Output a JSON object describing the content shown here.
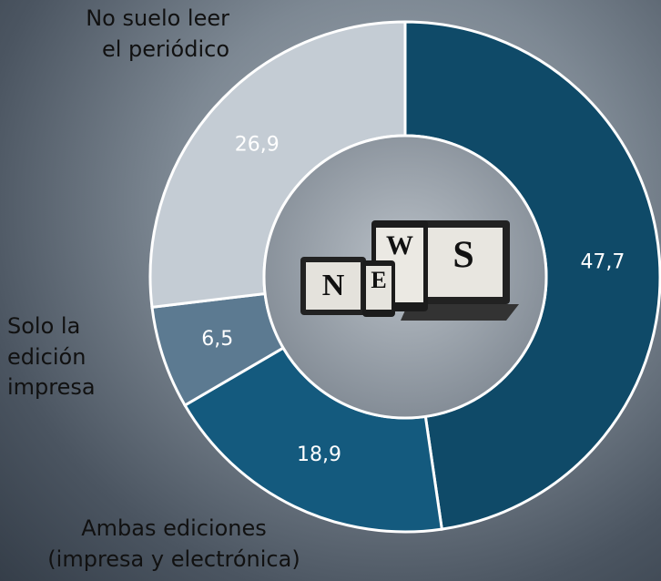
{
  "chart_data": {
    "type": "donut",
    "categories": [
      null,
      "Ambas ediciones (impresa y electrónica)",
      "Solo la edición impresa",
      "No suelo leer el periódico"
    ],
    "values": [
      47.7,
      18.9,
      6.5,
      26.9
    ],
    "value_labels": [
      "47,7",
      "18,9",
      "6,5",
      "26,9"
    ],
    "colors": [
      "#0f4a68",
      "#145a7e",
      "#5c7a91",
      "#c4ccd4"
    ]
  }
}
